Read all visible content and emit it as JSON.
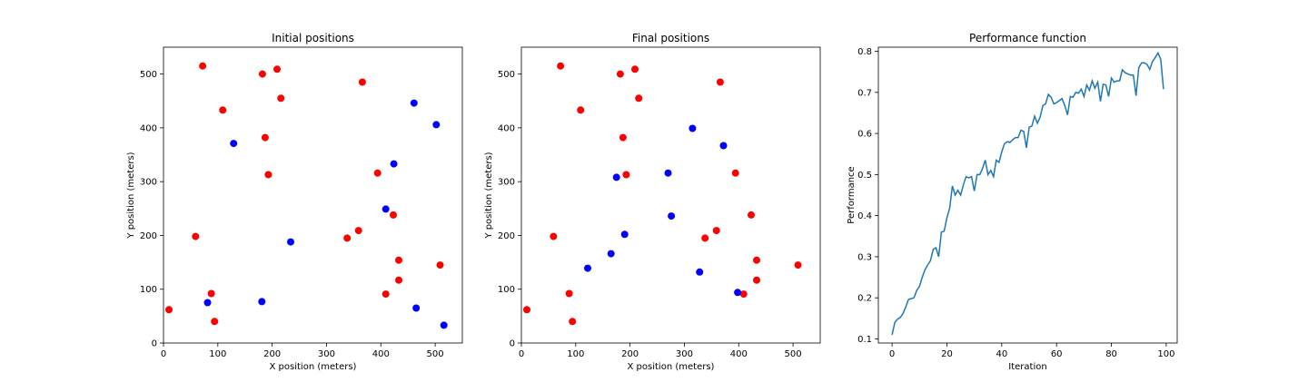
{
  "colors": {
    "red_points": "#ff0000",
    "blue_points": "#0000ff",
    "performance_line": "#1f77b4",
    "background": "#ffffff",
    "axes": "#000000"
  },
  "chart_data": [
    {
      "type": "scatter",
      "title": "Initial positions",
      "xlabel": "X position (meters)",
      "ylabel": "Y position (meters)",
      "xlim": [
        0,
        550
      ],
      "ylim": [
        0,
        550
      ],
      "xticks": [
        0,
        100,
        200,
        300,
        400,
        500
      ],
      "yticks": [
        0,
        100,
        200,
        300,
        400,
        500
      ],
      "grid": false,
      "series": [
        {
          "color": "#ff0000",
          "points": [
            [
              72,
              515
            ],
            [
              182,
              500
            ],
            [
              209,
              509
            ],
            [
              366,
              485
            ],
            [
              216,
              455
            ],
            [
              109,
              433
            ],
            [
              187,
              382
            ],
            [
              193,
              313
            ],
            [
              394,
              316
            ],
            [
              59,
              198
            ],
            [
              423,
              238
            ],
            [
              359,
              209
            ],
            [
              338,
              195
            ],
            [
              433,
              154
            ],
            [
              509,
              145
            ],
            [
              433,
              117
            ],
            [
              88,
              92
            ],
            [
              409,
              91
            ],
            [
              94,
              40
            ],
            [
              10,
              62
            ]
          ]
        },
        {
          "color": "#0000ff",
          "points": [
            [
              461,
              446
            ],
            [
              502,
              406
            ],
            [
              129,
              371
            ],
            [
              424,
              333
            ],
            [
              409,
              249
            ],
            [
              234,
              188
            ],
            [
              81,
              75
            ],
            [
              181,
              77
            ],
            [
              465,
              65
            ],
            [
              516,
              33
            ]
          ]
        }
      ]
    },
    {
      "type": "scatter",
      "title": "Final positions",
      "xlabel": "X position (meters)",
      "ylabel": "Y position (meters)",
      "xlim": [
        0,
        550
      ],
      "ylim": [
        0,
        550
      ],
      "xticks": [
        0,
        100,
        200,
        300,
        400,
        500
      ],
      "yticks": [
        0,
        100,
        200,
        300,
        400,
        500
      ],
      "grid": false,
      "series": [
        {
          "color": "#ff0000",
          "points": [
            [
              72,
              515
            ],
            [
              182,
              500
            ],
            [
              209,
              509
            ],
            [
              366,
              485
            ],
            [
              216,
              455
            ],
            [
              109,
              433
            ],
            [
              187,
              382
            ],
            [
              193,
              313
            ],
            [
              394,
              316
            ],
            [
              59,
              198
            ],
            [
              423,
              238
            ],
            [
              359,
              209
            ],
            [
              338,
              195
            ],
            [
              433,
              154
            ],
            [
              509,
              145
            ],
            [
              433,
              117
            ],
            [
              88,
              92
            ],
            [
              409,
              91
            ],
            [
              94,
              40
            ],
            [
              10,
              62
            ]
          ]
        },
        {
          "color": "#0000ff",
          "points": [
            [
              315,
              399
            ],
            [
              372,
              367
            ],
            [
              175,
              308
            ],
            [
              270,
              316
            ],
            [
              276,
              236
            ],
            [
              190,
              202
            ],
            [
              165,
              166
            ],
            [
              122,
              139
            ],
            [
              328,
              132
            ],
            [
              398,
              94
            ]
          ]
        }
      ]
    },
    {
      "type": "line",
      "title": "Performance function",
      "xlabel": "Iteration",
      "ylabel": "Performance",
      "xlim": [
        -5,
        104
      ],
      "ylim": [
        0.09,
        0.81
      ],
      "xticks": [
        0,
        20,
        40,
        60,
        80,
        100
      ],
      "yticks": [
        0.1,
        0.2,
        0.3,
        0.4,
        0.5,
        0.6,
        0.7,
        0.8
      ],
      "grid": false,
      "series": [
        {
          "color": "#1f77b4",
          "x": [
            0,
            1,
            2,
            3,
            4,
            5,
            6,
            7,
            8,
            9,
            10,
            11,
            12,
            13,
            14,
            15,
            16,
            17,
            18,
            19,
            20,
            21,
            22,
            23,
            24,
            25,
            26,
            27,
            28,
            29,
            30,
            31,
            32,
            33,
            34,
            35,
            36,
            37,
            38,
            39,
            40,
            41,
            42,
            43,
            44,
            45,
            46,
            47,
            48,
            49,
            50,
            51,
            52,
            53,
            54,
            55,
            56,
            57,
            58,
            59,
            60,
            61,
            62,
            63,
            64,
            65,
            66,
            67,
            68,
            69,
            70,
            71,
            72,
            73,
            74,
            75,
            76,
            77,
            78,
            79,
            80,
            81,
            82,
            83,
            84,
            85,
            86,
            87,
            88,
            89,
            90,
            91,
            92,
            93,
            94,
            95,
            96,
            97,
            98,
            99
          ],
          "y": [
            0.11,
            0.14,
            0.148,
            0.152,
            0.162,
            0.178,
            0.196,
            0.198,
            0.2,
            0.218,
            0.228,
            0.25,
            0.268,
            0.28,
            0.29,
            0.318,
            0.322,
            0.3,
            0.36,
            0.362,
            0.395,
            0.418,
            0.472,
            0.45,
            0.462,
            0.45,
            0.475,
            0.495,
            0.492,
            0.495,
            0.46,
            0.5,
            0.5,
            0.515,
            0.535,
            0.5,
            0.51,
            0.495,
            0.535,
            0.53,
            0.555,
            0.575,
            0.58,
            0.578,
            0.585,
            0.59,
            0.59,
            0.608,
            0.605,
            0.565,
            0.615,
            0.618,
            0.642,
            0.625,
            0.64,
            0.668,
            0.672,
            0.695,
            0.688,
            0.672,
            0.675,
            0.68,
            0.685,
            0.668,
            0.645,
            0.69,
            0.688,
            0.7,
            0.698,
            0.708,
            0.69,
            0.718,
            0.705,
            0.728,
            0.71,
            0.725,
            0.678,
            0.72,
            0.718,
            0.69,
            0.735,
            0.725,
            0.728,
            0.728,
            0.755,
            0.748,
            0.745,
            0.742,
            0.742,
            0.692,
            0.76,
            0.772,
            0.772,
            0.768,
            0.756,
            0.775,
            0.785,
            0.796,
            0.78,
            0.708
          ]
        }
      ]
    }
  ]
}
